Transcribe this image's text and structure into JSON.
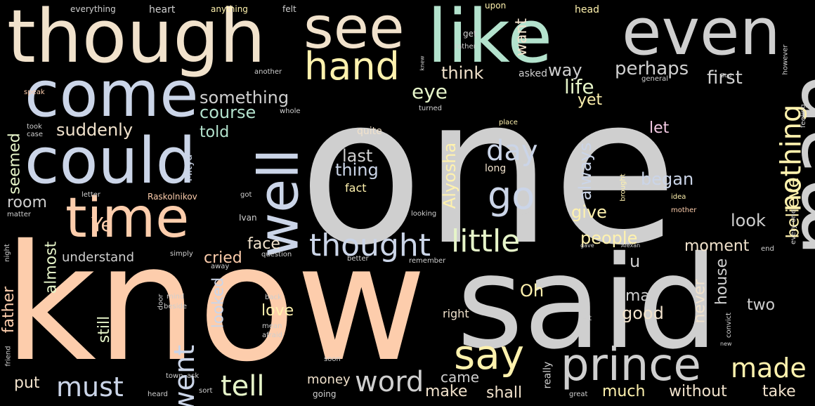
{
  "words": [
    {
      "text": "one",
      "color": "#cfcfcf"
    },
    {
      "text": "know",
      "color": "#fdcdac"
    },
    {
      "text": "said",
      "color": "#cfcfcf"
    },
    {
      "text": "though",
      "color": "#f1e2cc"
    },
    {
      "text": "like",
      "color": "#b3e2cd"
    },
    {
      "text": "see",
      "color": "#f1e2cc"
    },
    {
      "text": "even",
      "color": "#cfcfcf"
    },
    {
      "text": "come",
      "color": "#cbd5e8"
    },
    {
      "text": "could",
      "color": "#cbd5e8"
    },
    {
      "text": "man",
      "color": "#cfcfcf"
    },
    {
      "text": "time",
      "color": "#fdcdac"
    },
    {
      "text": "well",
      "color": "#cbd5e8"
    },
    {
      "text": "prince",
      "color": "#cfcfcf"
    },
    {
      "text": "hand",
      "color": "#fff2ae"
    },
    {
      "text": "go",
      "color": "#cbd5e8"
    },
    {
      "text": "say",
      "color": "#fff2ae"
    },
    {
      "text": "thought",
      "color": "#cbd5e8"
    },
    {
      "text": "little",
      "color": "#e6f5c9"
    },
    {
      "text": "nothing",
      "color": "#fff2ae"
    },
    {
      "text": "tell",
      "color": "#e6f5c9"
    },
    {
      "text": "word",
      "color": "#cfcfcf"
    },
    {
      "text": "must",
      "color": "#cbd5e8"
    },
    {
      "text": "made",
      "color": "#fff2ae"
    },
    {
      "text": "went",
      "color": "#cbd5e8"
    },
    {
      "text": "day",
      "color": "#cbd5e8"
    },
    {
      "text": "something",
      "color": "#cfcfcf"
    },
    {
      "text": "course",
      "color": "#b3e2cd"
    },
    {
      "text": "suddenly",
      "color": "#f1e2cc"
    },
    {
      "text": "perhaps",
      "color": "#cfcfcf"
    },
    {
      "text": "first",
      "color": "#cfcfcf"
    },
    {
      "text": "think",
      "color": "#f1e2cc"
    },
    {
      "text": "eye",
      "color": "#e6f5c9"
    },
    {
      "text": "way",
      "color": "#cfcfcf"
    },
    {
      "text": "life",
      "color": "#e6f5c9"
    },
    {
      "text": "want",
      "color": "#f1e2cc"
    },
    {
      "text": "asked",
      "color": "#cfcfcf"
    },
    {
      "text": "yet",
      "color": "#fff2ae"
    },
    {
      "text": "Ye",
      "color": "#fdcdac"
    },
    {
      "text": "told",
      "color": "#b3e2cd"
    },
    {
      "text": "let",
      "color": "#f4cae4"
    },
    {
      "text": "began",
      "color": "#cbd5e8"
    },
    {
      "text": "always",
      "color": "#cbd5e8"
    },
    {
      "text": "believe",
      "color": "#fff2ae"
    },
    {
      "text": "last",
      "color": "#cfcfcf"
    },
    {
      "text": "thing",
      "color": "#cbd5e8"
    },
    {
      "text": "Alyosha",
      "color": "#fff2ae"
    },
    {
      "text": "give",
      "color": "#fff2ae"
    },
    {
      "text": "look",
      "color": "#cfcfcf"
    },
    {
      "text": "people",
      "color": "#fff2ae"
    },
    {
      "text": "face",
      "color": "#f1e2cc"
    },
    {
      "text": "cried",
      "color": "#fdcdac"
    },
    {
      "text": "moment",
      "color": "#f1e2cc"
    },
    {
      "text": "understand",
      "color": "#cfcfcf"
    },
    {
      "text": "almost",
      "color": "#e6f5c9"
    },
    {
      "text": "room",
      "color": "#cfcfcf"
    },
    {
      "text": "seemed",
      "color": "#e6f5c9"
    },
    {
      "text": "father",
      "color": "#fdcdac"
    },
    {
      "text": "still",
      "color": "#e6f5c9"
    },
    {
      "text": "love",
      "color": "#fff2ae"
    },
    {
      "text": "looked",
      "color": "#cbd5e8"
    },
    {
      "text": "may",
      "color": "#cfcfcf"
    },
    {
      "text": "good",
      "color": "#f1e2cc"
    },
    {
      "text": "never",
      "color": "#f1e2cc"
    },
    {
      "text": "house",
      "color": "#cfcfcf"
    },
    {
      "text": "two",
      "color": "#cfcfcf"
    },
    {
      "text": "Oh",
      "color": "#fff2ae"
    },
    {
      "text": "u",
      "color": "#cfcfcf"
    },
    {
      "text": "put",
      "color": "#f1e2cc"
    },
    {
      "text": "money",
      "color": "#f1e2cc"
    },
    {
      "text": "came",
      "color": "#cfcfcf"
    },
    {
      "text": "make",
      "color": "#f1e2cc"
    },
    {
      "text": "shall",
      "color": "#f1e2cc"
    },
    {
      "text": "much",
      "color": "#fff2ae"
    },
    {
      "text": "without",
      "color": "#f1e2cc"
    },
    {
      "text": "take",
      "color": "#f1e2cc"
    },
    {
      "text": "quite",
      "color": "#f1e2cc"
    },
    {
      "text": "fact",
      "color": "#fff2ae"
    },
    {
      "text": "long",
      "color": "#f1e2cc"
    },
    {
      "text": "Mitya",
      "color": "#cbd5e8"
    },
    {
      "text": "Raskolnikov",
      "color": "#fdcdac"
    },
    {
      "text": "Ivan",
      "color": "#cfcfcf"
    },
    {
      "text": "right",
      "color": "#f1e2cc"
    },
    {
      "text": "everything",
      "color": "#cfcfcf"
    },
    {
      "text": "heart",
      "color": "#cfcfcf"
    },
    {
      "text": "anything",
      "color": "#fff2ae"
    },
    {
      "text": "felt",
      "color": "#cfcfcf"
    },
    {
      "text": "upon",
      "color": "#fff2ae"
    },
    {
      "text": "head",
      "color": "#fff2ae"
    },
    {
      "text": "get",
      "color": "#cfcfcf"
    },
    {
      "text": "rather",
      "color": "#cfcfcf"
    },
    {
      "text": "another",
      "color": "#cfcfcf"
    },
    {
      "text": "speak",
      "color": "#fdcdac"
    },
    {
      "text": "took",
      "color": "#cfcfcf"
    },
    {
      "text": "case",
      "color": "#cfcfcf"
    },
    {
      "text": "whole",
      "color": "#cfcfcf"
    },
    {
      "text": "turned",
      "color": "#cfcfcf"
    },
    {
      "text": "place",
      "color": "#fff2ae"
    },
    {
      "text": "idea",
      "color": "#fff2ae"
    },
    {
      "text": "mother",
      "color": "#fdcdac"
    },
    {
      "text": "brought",
      "color": "#fff2ae"
    },
    {
      "text": "letter",
      "color": "#cfcfcf"
    },
    {
      "text": "got",
      "color": "#cfcfcf"
    },
    {
      "text": "matter",
      "color": "#cfcfcf"
    },
    {
      "text": "looking",
      "color": "#cfcfcf"
    },
    {
      "text": "saw",
      "color": "#cfcfcf"
    },
    {
      "text": "night",
      "color": "#cfcfcf"
    },
    {
      "text": "simply",
      "color": "#cfcfcf"
    },
    {
      "text": "away",
      "color": "#cfcfcf"
    },
    {
      "text": "question",
      "color": "#cfcfcf"
    },
    {
      "text": "better",
      "color": "#cfcfcf"
    },
    {
      "text": "remember",
      "color": "#cfcfcf"
    },
    {
      "text": "end",
      "color": "#cfcfcf"
    },
    {
      "text": "gave",
      "color": "#cfcfcf"
    },
    {
      "text": "Alexan",
      "color": "#cfcfcf"
    },
    {
      "text": "mind",
      "color": "#cfcfcf"
    },
    {
      "text": "beside",
      "color": "#cfcfcf"
    },
    {
      "text": "back",
      "color": "#cfcfcf"
    },
    {
      "text": "indeed",
      "color": "#cfcfcf"
    },
    {
      "text": "left",
      "color": "#cfcfcf"
    },
    {
      "text": "mean",
      "color": "#cfcfcf"
    },
    {
      "text": "afraid",
      "color": "#cfcfcf"
    },
    {
      "text": "door",
      "color": "#cfcfcf"
    },
    {
      "text": "really",
      "color": "#cfcfcf"
    },
    {
      "text": "new",
      "color": "#cfcfcf"
    },
    {
      "text": "convict",
      "color": "#cfcfcf"
    },
    {
      "text": "every one",
      "color": "#cfcfcf"
    },
    {
      "text": "feeling",
      "color": "#cfcfcf"
    },
    {
      "text": "however",
      "color": "#cfcfcf"
    },
    {
      "text": "general",
      "color": "#cfcfcf"
    },
    {
      "text": "God",
      "color": "#cfcfcf"
    },
    {
      "text": "friend",
      "color": "#cfcfcf"
    },
    {
      "text": "town",
      "color": "#cfcfcf"
    },
    {
      "text": "ask",
      "color": "#cfcfcf"
    },
    {
      "text": "soon",
      "color": "#cfcfcf"
    },
    {
      "text": "sort",
      "color": "#cfcfcf"
    },
    {
      "text": "heard",
      "color": "#cfcfcf"
    },
    {
      "text": "going",
      "color": "#cfcfcf"
    },
    {
      "text": "great",
      "color": "#cfcfcf"
    },
    {
      "text": "knew",
      "color": "#cfcfcf"
    }
  ]
}
